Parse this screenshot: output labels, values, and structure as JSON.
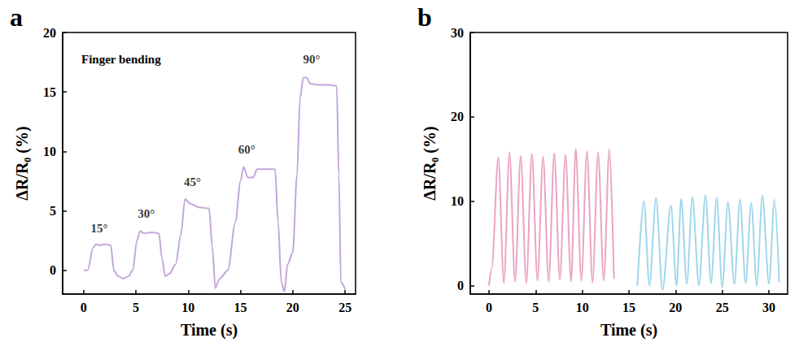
{
  "chart_data": [
    {
      "type": "line",
      "panel_label": "a",
      "title": "Finger bending",
      "x_label": "Time (s)",
      "y_label": "ΔR/R₀ (%)",
      "xlim": [
        -2,
        26
      ],
      "xticks": [
        0,
        5,
        10,
        15,
        20,
        25
      ],
      "ylim": [
        -2,
        20
      ],
      "yticks": [
        0,
        5,
        10,
        15,
        20
      ],
      "grid": false,
      "series": [
        {
          "color": "#c3a6d9",
          "x": [
            0,
            0.4,
            0.9,
            1.2,
            1.5,
            2.0,
            2.6,
            2.9,
            3.3,
            3.8,
            4.3,
            4.7,
            5.1,
            5.4,
            5.8,
            6.5,
            7.2,
            7.5,
            7.8,
            8.2,
            8.8,
            9.3,
            9.7,
            10.2,
            11,
            12,
            12.3,
            12.6,
            13.0,
            13.8,
            14.5,
            15.0,
            15.3,
            15.7,
            16.2,
            16.6,
            17.5,
            18.3,
            18.6,
            18.9,
            19.2,
            19.5,
            20.0,
            20.4,
            20.7,
            21.0,
            21.3,
            21.7,
            22.5,
            23.5,
            24.2,
            24.4,
            24.6,
            25.0
          ],
          "values": [
            0,
            0,
            1.9,
            2.2,
            2.1,
            2.2,
            2.1,
            0,
            -0.5,
            -0.7,
            -0.5,
            0,
            2.5,
            3.3,
            3.1,
            3.2,
            3.1,
            1.0,
            -0.5,
            -0.3,
            0.5,
            3.0,
            6.0,
            5.6,
            5.3,
            5.2,
            2,
            -1.5,
            -0.7,
            0,
            4,
            7.5,
            8.7,
            7.8,
            7.8,
            8.5,
            8.5,
            8.5,
            4,
            -1,
            -1.8,
            0.5,
            1.5,
            8,
            14.5,
            16.2,
            16.2,
            15.7,
            15.6,
            15.6,
            15.5,
            8,
            -1,
            -1.6
          ]
        }
      ],
      "annotations": [
        {
          "text": "15°",
          "x": 1.5,
          "y": 2.9
        },
        {
          "text": "30°",
          "x": 6.0,
          "y": 4.1
        },
        {
          "text": "45°",
          "x": 10.4,
          "y": 6.8
        },
        {
          "text": "60°",
          "x": 15.6,
          "y": 9.5
        },
        {
          "text": "90°",
          "x": 21.8,
          "y": 17.1
        }
      ]
    },
    {
      "type": "line",
      "panel_label": "b",
      "x_label": "Time (s)",
      "y_label": "ΔR/R₀ (%)",
      "xlim": [
        -2,
        32
      ],
      "xticks": [
        0,
        5,
        10,
        15,
        20,
        25,
        30
      ],
      "ylim": [
        -1,
        30
      ],
      "yticks": [
        0,
        10,
        20,
        30
      ],
      "grid": false,
      "series": [
        {
          "color": "#eba3c3",
          "x": [
            0,
            0.3,
            1.0,
            1.6,
            2.2,
            2.8,
            3.4,
            4.0,
            4.6,
            5.2,
            5.8,
            6.4,
            7.0,
            7.6,
            8.2,
            8.8,
            9.3,
            9.9,
            10.5,
            11.1,
            11.7,
            12.3,
            12.9,
            13.4
          ],
          "values": [
            0,
            2,
            15.2,
            0.3,
            15.8,
            0.5,
            15.4,
            0.3,
            15.6,
            0.6,
            15.3,
            0.5,
            15.7,
            0.7,
            15.5,
            0.5,
            16.2,
            0.6,
            15.9,
            0.4,
            15.8,
            0.6,
            16.2,
            0.8
          ]
        },
        {
          "color": "#9fd6ea",
          "x": [
            15.9,
            16.6,
            17.2,
            17.9,
            18.6,
            19.5,
            20.1,
            20.6,
            21.2,
            21.8,
            22.5,
            23.2,
            23.8,
            24.4,
            25.0,
            25.6,
            26.3,
            26.9,
            27.5,
            28.1,
            28.7,
            29.3,
            30.0,
            30.6,
            31.1
          ],
          "values": [
            0,
            10.0,
            0,
            10.4,
            -0.5,
            9.5,
            0,
            10.3,
            0.2,
            10.5,
            0,
            10.7,
            0.3,
            10.4,
            -0.2,
            9.9,
            0.2,
            10.2,
            0.3,
            9.8,
            0,
            10.7,
            0.2,
            10.2,
            0.4
          ]
        }
      ]
    }
  ]
}
